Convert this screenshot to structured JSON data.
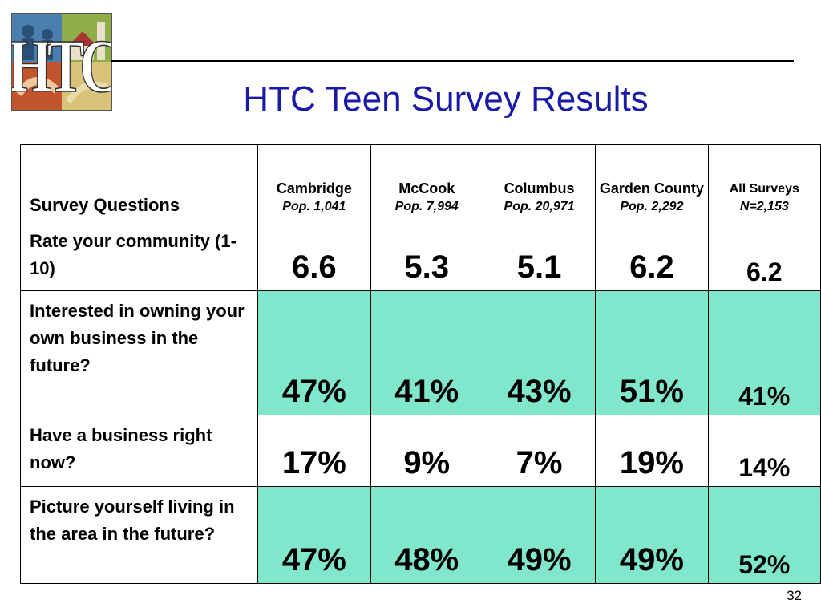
{
  "slide": {
    "title": "HTC Teen Survey Results",
    "page_number": "32",
    "logo_letters": "HTC"
  },
  "table": {
    "question_header": "Survey Questions",
    "columns": [
      {
        "name": "Cambridge",
        "pop": "Pop. 1,041"
      },
      {
        "name": "McCook",
        "pop": "Pop. 7,994"
      },
      {
        "name": "Columbus",
        "pop": "Pop. 20,971"
      },
      {
        "name": "Garden County",
        "pop": "Pop. 2,292"
      },
      {
        "name": "All Surveys",
        "pop": "N=2,153"
      }
    ],
    "rows": [
      {
        "question": "Rate your community (1-10)",
        "values": [
          "6.6",
          "5.3",
          "5.1",
          "6.2",
          "6.2"
        ]
      },
      {
        "question": "Interested in owning your own business in the future?",
        "values": [
          "47%",
          "41%",
          "43%",
          "51%",
          "41%"
        ]
      },
      {
        "question": "Have a business right now?",
        "values": [
          "17%",
          "9%",
          "7%",
          "19%",
          "14%"
        ]
      },
      {
        "question": "Picture yourself living in the area in the future?",
        "values": [
          "47%",
          "48%",
          "49%",
          "49%",
          "52%"
        ]
      }
    ],
    "tint_color": "#80e6cc"
  }
}
